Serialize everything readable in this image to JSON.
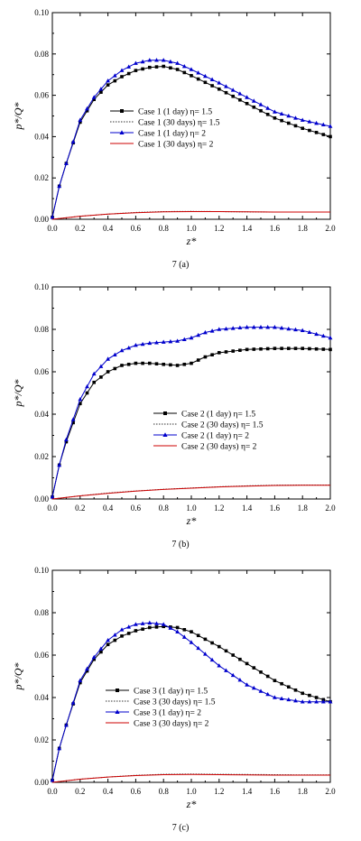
{
  "chart_data": [
    {
      "type": "line",
      "caption": "7 (a)",
      "xlabel": "z*",
      "ylabel": "p*/Q*",
      "xlim": [
        0,
        2.0
      ],
      "ylim": [
        0,
        0.1
      ],
      "xticks": [
        "0.0",
        "0.2",
        "0.4",
        "0.6",
        "0.8",
        "1.0",
        "1.2",
        "1.4",
        "1.6",
        "1.8",
        "2.0"
      ],
      "yticks": [
        "0.00",
        "0.02",
        "0.04",
        "0.06",
        "0.08",
        "0.10"
      ],
      "legend_position": "center-right",
      "series": [
        {
          "name": "Case 1 (1 day) η= 1.5",
          "color": "#000000",
          "marker": "square",
          "dashed": false,
          "x": [
            0,
            0.05,
            0.1,
            0.2,
            0.3,
            0.4,
            0.5,
            0.6,
            0.7,
            0.8,
            0.9,
            1.0,
            1.2,
            1.4,
            1.6,
            1.8,
            2.0
          ],
          "y": [
            0.001,
            0.016,
            0.027,
            0.047,
            0.058,
            0.065,
            0.069,
            0.072,
            0.0735,
            0.074,
            0.0725,
            0.0695,
            0.063,
            0.056,
            0.049,
            0.044,
            0.04
          ]
        },
        {
          "name": "Case 1 (30 days) η= 1.5",
          "color": "#333333",
          "marker": "none",
          "dashed": true,
          "x": [
            0,
            0.2,
            0.4,
            0.6,
            0.8,
            1.0,
            1.2,
            1.4,
            1.6,
            1.8,
            2.0
          ],
          "y": [
            0,
            0.0015,
            0.0025,
            0.0033,
            0.0037,
            0.0038,
            0.0037,
            0.0036,
            0.0035,
            0.0035,
            0.0035
          ]
        },
        {
          "name": "Case 1 (1 day) η= 2",
          "color": "#0000cc",
          "marker": "triangle",
          "dashed": false,
          "x": [
            0,
            0.05,
            0.1,
            0.2,
            0.3,
            0.4,
            0.5,
            0.6,
            0.7,
            0.8,
            0.9,
            1.0,
            1.2,
            1.4,
            1.6,
            1.8,
            2.0
          ],
          "y": [
            0.001,
            0.016,
            0.027,
            0.048,
            0.059,
            0.067,
            0.072,
            0.0755,
            0.077,
            0.077,
            0.0755,
            0.0725,
            0.066,
            0.059,
            0.052,
            0.048,
            0.045
          ]
        },
        {
          "name": "Case 1 (30 days) η= 2",
          "color": "#cc0000",
          "marker": "none",
          "dashed": false,
          "x": [
            0,
            0.2,
            0.4,
            0.6,
            0.8,
            1.0,
            1.2,
            1.4,
            1.6,
            1.8,
            2.0
          ],
          "y": [
            0,
            0.0015,
            0.0025,
            0.0032,
            0.0036,
            0.0037,
            0.0037,
            0.0036,
            0.0035,
            0.0035,
            0.0035
          ]
        }
      ]
    },
    {
      "type": "line",
      "caption": "7 (b)",
      "xlabel": "z*",
      "ylabel": "p*/Q*",
      "xlim": [
        0,
        2.0
      ],
      "ylim": [
        0,
        0.1
      ],
      "xticks": [
        "0.0",
        "0.2",
        "0.4",
        "0.6",
        "0.8",
        "1.0",
        "1.2",
        "1.4",
        "1.6",
        "1.8",
        "2.0"
      ],
      "yticks": [
        "0.00",
        "0.02",
        "0.04",
        "0.06",
        "0.08",
        "0.10"
      ],
      "legend_position": "center-right",
      "series": [
        {
          "name": "Case 2 (1 day) η= 1.5",
          "color": "#000000",
          "marker": "square",
          "dashed": false,
          "x": [
            0,
            0.05,
            0.1,
            0.2,
            0.3,
            0.4,
            0.5,
            0.6,
            0.7,
            0.8,
            0.9,
            1.0,
            1.1,
            1.2,
            1.4,
            1.6,
            1.8,
            2.0
          ],
          "y": [
            0.001,
            0.016,
            0.027,
            0.045,
            0.055,
            0.06,
            0.063,
            0.064,
            0.064,
            0.0635,
            0.063,
            0.064,
            0.067,
            0.069,
            0.0705,
            0.071,
            0.071,
            0.0705
          ]
        },
        {
          "name": "Case 2 (30 days) η= 1.5",
          "color": "#333333",
          "marker": "none",
          "dashed": true,
          "x": [
            0,
            0.2,
            0.4,
            0.6,
            0.8,
            1.0,
            1.2,
            1.4,
            1.6,
            1.8,
            2.0
          ],
          "y": [
            0,
            0.0015,
            0.0028,
            0.0038,
            0.0046,
            0.0052,
            0.0058,
            0.0062,
            0.0065,
            0.0066,
            0.0066
          ]
        },
        {
          "name": "Case 2 (1 day) η= 2",
          "color": "#0000cc",
          "marker": "triangle",
          "dashed": false,
          "x": [
            0,
            0.05,
            0.1,
            0.2,
            0.3,
            0.4,
            0.5,
            0.6,
            0.7,
            0.8,
            0.9,
            1.0,
            1.1,
            1.2,
            1.4,
            1.6,
            1.8,
            2.0
          ],
          "y": [
            0.001,
            0.016,
            0.028,
            0.047,
            0.059,
            0.066,
            0.07,
            0.0725,
            0.0735,
            0.074,
            0.0745,
            0.076,
            0.0785,
            0.08,
            0.081,
            0.081,
            0.0795,
            0.076
          ]
        },
        {
          "name": "Case 2 (30 days) η= 2",
          "color": "#cc0000",
          "marker": "none",
          "dashed": false,
          "x": [
            0,
            0.2,
            0.4,
            0.6,
            0.8,
            1.0,
            1.2,
            1.4,
            1.6,
            1.8,
            2.0
          ],
          "y": [
            0,
            0.0015,
            0.0027,
            0.0037,
            0.0045,
            0.0051,
            0.0057,
            0.0061,
            0.0064,
            0.0065,
            0.0065
          ]
        }
      ]
    },
    {
      "type": "line",
      "caption": "7 (c)",
      "xlabel": "z*",
      "ylabel": "p*/Q*",
      "xlim": [
        0,
        2.0
      ],
      "ylim": [
        0,
        0.1
      ],
      "xticks": [
        "0.0",
        "0.2",
        "0.4",
        "0.6",
        "0.8",
        "1.0",
        "1.2",
        "1.4",
        "1.6",
        "1.8",
        "2.0"
      ],
      "yticks": [
        "0.00",
        "0.02",
        "0.04",
        "0.06",
        "0.08",
        "0.10"
      ],
      "legend_position": "bottom-center",
      "series": [
        {
          "name": "Case 3 (1 day) η= 1.5",
          "color": "#000000",
          "marker": "square",
          "dashed": false,
          "x": [
            0,
            0.05,
            0.1,
            0.2,
            0.3,
            0.4,
            0.5,
            0.6,
            0.7,
            0.8,
            0.9,
            1.0,
            1.2,
            1.4,
            1.6,
            1.8,
            2.0
          ],
          "y": [
            0.001,
            0.016,
            0.027,
            0.047,
            0.058,
            0.065,
            0.069,
            0.0715,
            0.073,
            0.0735,
            0.073,
            0.071,
            0.064,
            0.056,
            0.048,
            0.042,
            0.038
          ]
        },
        {
          "name": "Case 3 (30 days) η= 1.5",
          "color": "#333333",
          "marker": "none",
          "dashed": true,
          "x": [
            0,
            0.2,
            0.4,
            0.6,
            0.8,
            1.0,
            1.2,
            1.4,
            1.6,
            1.8,
            2.0
          ],
          "y": [
            0,
            0.0015,
            0.0025,
            0.0033,
            0.0038,
            0.0039,
            0.0038,
            0.0037,
            0.0036,
            0.0035,
            0.0035
          ]
        },
        {
          "name": "Case 3 (1 day) η= 2",
          "color": "#0000cc",
          "marker": "triangle",
          "dashed": false,
          "x": [
            0,
            0.05,
            0.1,
            0.2,
            0.3,
            0.4,
            0.5,
            0.6,
            0.7,
            0.8,
            0.9,
            1.0,
            1.2,
            1.4,
            1.6,
            1.8,
            2.0
          ],
          "y": [
            0.001,
            0.016,
            0.027,
            0.048,
            0.059,
            0.067,
            0.072,
            0.0745,
            0.0752,
            0.0745,
            0.071,
            0.066,
            0.055,
            0.046,
            0.04,
            0.038,
            0.038
          ]
        },
        {
          "name": "Case 3 (30 days) η= 2",
          "color": "#cc0000",
          "marker": "none",
          "dashed": false,
          "x": [
            0,
            0.2,
            0.4,
            0.6,
            0.8,
            1.0,
            1.2,
            1.4,
            1.6,
            1.8,
            2.0
          ],
          "y": [
            0,
            0.0015,
            0.0025,
            0.0032,
            0.0036,
            0.0037,
            0.0036,
            0.0035,
            0.0034,
            0.0034,
            0.0034
          ]
        }
      ]
    }
  ]
}
